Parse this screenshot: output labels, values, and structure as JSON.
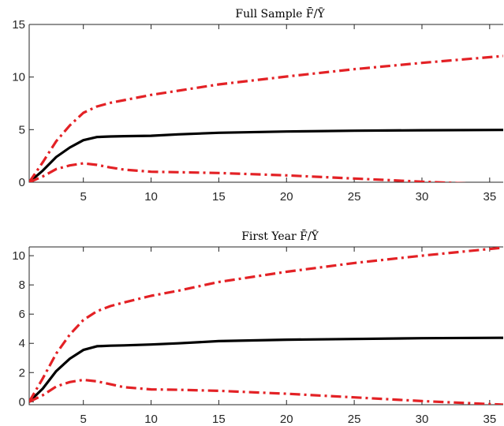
{
  "chart_data": [
    {
      "type": "line",
      "title": "Full Sample F̄/Ȳ",
      "xlabel": "",
      "ylabel": "",
      "xlim": [
        1,
        36
      ],
      "ylim": [
        0,
        15
      ],
      "xticks": [
        "5",
        "10",
        "15",
        "20",
        "25",
        "30",
        "35"
      ],
      "yticks": [
        "0",
        "5",
        "10",
        "15"
      ],
      "grid": false,
      "x": [
        1,
        2,
        3,
        4,
        5,
        6,
        7,
        8,
        10,
        12,
        15,
        20,
        25,
        30,
        36
      ],
      "series": [
        {
          "style": "solid",
          "color": "#000000",
          "values": [
            0,
            1.1,
            2.4,
            3.3,
            4.0,
            4.3,
            4.35,
            4.38,
            4.42,
            4.55,
            4.7,
            4.82,
            4.9,
            4.94,
            4.97
          ]
        },
        {
          "style": "dashdot",
          "color": "#e32125",
          "values": [
            0,
            1.9,
            3.9,
            5.4,
            6.6,
            7.2,
            7.55,
            7.8,
            8.3,
            8.7,
            9.3,
            10.05,
            10.75,
            11.35,
            12.0
          ]
        },
        {
          "style": "dashdot",
          "color": "#e32125",
          "values": [
            0,
            0.55,
            1.25,
            1.6,
            1.8,
            1.65,
            1.4,
            1.2,
            1.0,
            0.95,
            0.88,
            0.65,
            0.35,
            0.05,
            -0.25
          ]
        }
      ]
    },
    {
      "type": "line",
      "title": "First Year F̄/Ȳ",
      "xlabel": "",
      "ylabel": "",
      "xlim": [
        1,
        36
      ],
      "ylim": [
        -0.2,
        10.6
      ],
      "xticks": [
        "5",
        "10",
        "15",
        "20",
        "25",
        "30",
        "35"
      ],
      "yticks": [
        "0",
        "2",
        "4",
        "6",
        "8",
        "10"
      ],
      "grid": false,
      "x": [
        1,
        2,
        3,
        4,
        5,
        6,
        7,
        8,
        10,
        12,
        15,
        20,
        25,
        30,
        36
      ],
      "series": [
        {
          "style": "solid",
          "color": "#000000",
          "values": [
            0,
            0.9,
            2.1,
            2.95,
            3.55,
            3.8,
            3.84,
            3.86,
            3.92,
            4.0,
            4.15,
            4.25,
            4.3,
            4.35,
            4.38
          ]
        },
        {
          "style": "dashdot",
          "color": "#e32125",
          "values": [
            0,
            1.6,
            3.3,
            4.6,
            5.6,
            6.2,
            6.55,
            6.8,
            7.25,
            7.6,
            8.2,
            8.9,
            9.5,
            10.0,
            10.55
          ]
        },
        {
          "style": "dashdot",
          "color": "#e32125",
          "values": [
            0,
            0.45,
            1.05,
            1.35,
            1.5,
            1.4,
            1.2,
            1.0,
            0.85,
            0.82,
            0.75,
            0.55,
            0.3,
            0.05,
            -0.2
          ]
        }
      ]
    }
  ]
}
